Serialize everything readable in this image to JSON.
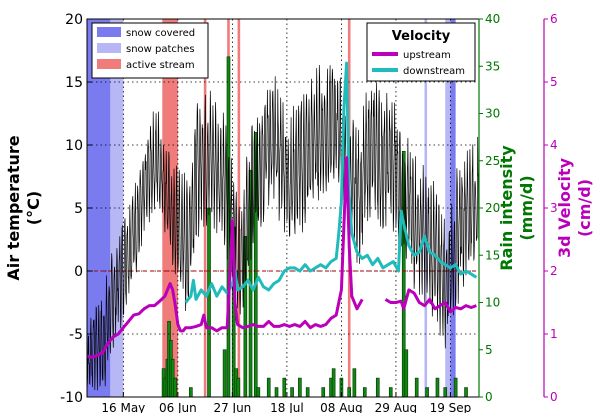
{
  "chart_data": {
    "type": "line",
    "x_ticks": [
      "16 May",
      "06 Jun",
      "27 Jun",
      "18 Jul",
      "08 Aug",
      "29 Aug",
      "19 Sep"
    ],
    "x_tick_days": [
      14,
      35,
      56,
      77,
      98,
      119,
      140
    ],
    "x_range_days": [
      0,
      151
    ],
    "axes": {
      "air": {
        "label": "Air temperature",
        "unit_label": "(°C)",
        "range": [
          -10,
          20
        ],
        "ticks": [
          -10,
          -5,
          0,
          5,
          10,
          15,
          20
        ],
        "color": "#000000"
      },
      "rain": {
        "label": "Rain intensity",
        "unit_label": "(mm/d)",
        "range": [
          0,
          40
        ],
        "ticks": [
          0,
          5,
          10,
          15,
          20,
          25,
          30,
          35,
          40
        ],
        "color": "#007700"
      },
      "velocity": {
        "label": "3d Velocity",
        "unit_label": "(cm/d)",
        "range": [
          0,
          6
        ],
        "ticks": [
          0,
          1,
          2,
          3,
          4,
          5,
          6
        ],
        "color": "#bb00bb"
      }
    },
    "legend_periods": {
      "items": [
        {
          "label": "snow covered",
          "color": "#7b7bf0"
        },
        {
          "label": "snow patches",
          "color": "#b7b7f5"
        },
        {
          "label": "active stream",
          "color": "#f07b7b"
        }
      ]
    },
    "legend_velocity": {
      "title": "Velocity",
      "items": [
        {
          "label": "upstream",
          "color": "#bb00bb"
        },
        {
          "label": "downstream",
          "color": "#22bbbb"
        }
      ]
    },
    "periods": [
      {
        "type": "snow covered",
        "start": 0,
        "end": 9
      },
      {
        "type": "snow patches",
        "start": 9,
        "end": 14
      },
      {
        "type": "active stream",
        "start": 29,
        "end": 35
      },
      {
        "type": "active stream",
        "start": 45,
        "end": 46
      },
      {
        "type": "active stream",
        "start": 54,
        "end": 55
      },
      {
        "type": "active stream",
        "start": 58,
        "end": 59
      },
      {
        "type": "active stream",
        "start": 100.5,
        "end": 101.5
      },
      {
        "type": "snow patches",
        "start": 130,
        "end": 131
      },
      {
        "type": "snow patches",
        "start": 138,
        "end": 140
      },
      {
        "type": "snow covered",
        "start": 140,
        "end": 142
      }
    ],
    "series": [
      {
        "name": "upstream",
        "axis": "velocity",
        "x": [
          0,
          2,
          4,
          6,
          8,
          10,
          12,
          14,
          16,
          18,
          20,
          22,
          24,
          26,
          28,
          30,
          32,
          33,
          34,
          35,
          36,
          37,
          38,
          40,
          42,
          44,
          45,
          46,
          48,
          50,
          52,
          54,
          56,
          57,
          58,
          60,
          62,
          64,
          66,
          68,
          70,
          72,
          74,
          76,
          78,
          80,
          82,
          84,
          86,
          88,
          90,
          92,
          94,
          96,
          98,
          100,
          101,
          102,
          104,
          106
        ],
        "values": [
          0.65,
          0.63,
          0.66,
          0.7,
          0.85,
          0.95,
          1.0,
          1.1,
          1.2,
          1.3,
          1.32,
          1.4,
          1.45,
          1.45,
          1.52,
          1.6,
          1.8,
          1.7,
          1.45,
          1.15,
          1.05,
          1.05,
          1.1,
          1.1,
          1.12,
          1.15,
          1.3,
          1.1,
          1.1,
          1.05,
          1.1,
          1.1,
          2.8,
          1.5,
          1.15,
          1.1,
          1.12,
          1.15,
          1.12,
          1.12,
          1.2,
          1.12,
          1.12,
          1.15,
          1.12,
          1.15,
          1.12,
          1.2,
          1.1,
          1.15,
          1.12,
          1.15,
          1.25,
          1.3,
          1.7,
          3.8,
          2.4,
          1.6,
          1.4,
          1.55
        ],
        "segment2_x": [
          115,
          117,
          119,
          121,
          122,
          124,
          126,
          128,
          130,
          132,
          134,
          136,
          138,
          140,
          142,
          144,
          146,
          148,
          150
        ],
        "segment2_values": [
          1.55,
          1.5,
          1.5,
          1.52,
          1.4,
          1.7,
          1.65,
          1.5,
          1.45,
          1.55,
          1.4,
          1.45,
          1.5,
          1.35,
          1.42,
          1.4,
          1.45,
          1.42,
          1.45
        ]
      },
      {
        "name": "downstream",
        "axis": "velocity",
        "x": [
          38,
          40,
          41,
          42,
          44,
          46,
          48,
          50,
          52,
          54,
          56,
          57,
          58,
          60,
          62,
          64,
          66,
          68,
          70,
          72,
          74,
          76,
          78,
          80,
          82,
          84,
          86,
          88,
          90,
          92,
          94,
          96,
          97,
          98,
          99,
          100,
          101,
          102,
          104,
          106,
          108,
          110,
          112,
          114,
          116,
          118,
          120,
          121,
          122,
          124,
          126,
          128,
          130,
          132,
          134,
          136,
          138,
          140,
          142,
          144,
          146,
          148,
          150
        ],
        "values": [
          1.5,
          1.6,
          1.85,
          1.55,
          1.7,
          1.6,
          1.8,
          1.6,
          1.75,
          1.65,
          1.8,
          2.0,
          1.7,
          1.75,
          1.85,
          1.7,
          1.9,
          1.75,
          1.7,
          1.8,
          1.85,
          2.0,
          2.05,
          2.05,
          2.0,
          2.1,
          2.0,
          2.05,
          2.1,
          2.05,
          2.15,
          2.2,
          2.6,
          3.1,
          4.6,
          5.3,
          3.2,
          2.6,
          2.3,
          2.2,
          2.25,
          2.1,
          2.2,
          2.05,
          2.1,
          2.15,
          2.0,
          2.95,
          2.75,
          2.4,
          2.25,
          2.3,
          2.55,
          2.3,
          2.25,
          2.15,
          2.1,
          2.05,
          2.1,
          1.95,
          2.0,
          1.95,
          1.9
        ]
      },
      {
        "name": "air temperature",
        "axis": "air",
        "daily_x": [
          0,
          3,
          6,
          9,
          12,
          15,
          18,
          21,
          24,
          27,
          30,
          33,
          36,
          39,
          42,
          45,
          48,
          51,
          54,
          57,
          60,
          63,
          66,
          69,
          72,
          75,
          78,
          81,
          84,
          87,
          90,
          93,
          96,
          99,
          102,
          105,
          108,
          111,
          114,
          117,
          120,
          123,
          126,
          129,
          132,
          135,
          138,
          141,
          144,
          147,
          150
        ],
        "daily_mean": [
          -7.5,
          -5.5,
          -6,
          -3,
          -1,
          1,
          3,
          5,
          8,
          9,
          7,
          4,
          3,
          2,
          8,
          9,
          9,
          8,
          6,
          2,
          1,
          6,
          8,
          10,
          10,
          9,
          7,
          8,
          9,
          10,
          11,
          11,
          12,
          9,
          7,
          6,
          9,
          10,
          8,
          9,
          7,
          6,
          4,
          3,
          2,
          1,
          -1,
          1,
          4,
          5,
          5
        ],
        "daily_amplitude": [
          2,
          3,
          3,
          3,
          3,
          3,
          3,
          3,
          3,
          3,
          3,
          3,
          4,
          4,
          4,
          4,
          4,
          4,
          4,
          4,
          4,
          4,
          4,
          4,
          4,
          4,
          4,
          4,
          4,
          4,
          4,
          4,
          4,
          4,
          4,
          4,
          4,
          4,
          4,
          4,
          4,
          4,
          4,
          4,
          4,
          4,
          4,
          4,
          4,
          4,
          4
        ]
      },
      {
        "name": "rain intensity",
        "axis": "rain",
        "x": [
          29.5,
          30.2,
          31,
          31.6,
          32.3,
          33,
          34,
          40,
          47,
          53,
          54.5,
          56.5,
          57.5,
          58.3,
          61,
          63,
          65,
          66,
          70,
          73,
          76,
          79,
          82,
          85,
          91,
          94,
          95,
          98,
          101,
          103,
          107,
          112,
          117,
          122,
          123,
          127,
          131,
          135,
          138,
          142,
          146
        ],
        "values": [
          3,
          2,
          4,
          8,
          6,
          4,
          2,
          1,
          20,
          5,
          36,
          18,
          3,
          2,
          17,
          24,
          28,
          1,
          2,
          1,
          2,
          1,
          2,
          1,
          1,
          2,
          3,
          2,
          1,
          3,
          1,
          2,
          1,
          26,
          5,
          2,
          1,
          2,
          1,
          2,
          1
        ]
      }
    ],
    "reference_line": {
      "axis": "air",
      "value": 0,
      "style": "dashed",
      "color": "#aa0000"
    },
    "grid": true
  }
}
